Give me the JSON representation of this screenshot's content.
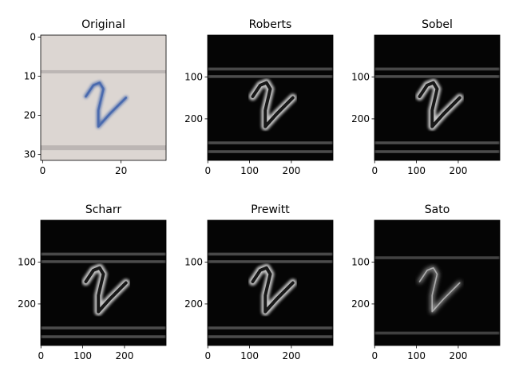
{
  "chart_data": [
    {
      "type": "image",
      "title": "Original",
      "image_kind": "photo",
      "xlim": [
        -0.5,
        31.5
      ],
      "ylim": [
        31.5,
        -0.5
      ],
      "xticks": [
        0,
        20
      ],
      "yticks": [
        0,
        10,
        20,
        30
      ],
      "colors": {
        "background": "#dcd6d2",
        "line": "#b8b2b0",
        "ink": "#4a6aae"
      }
    },
    {
      "type": "image",
      "title": "Roberts",
      "image_kind": "edge",
      "xlim": [
        -0.5,
        299.5
      ],
      "ylim": [
        299.5,
        -0.5
      ],
      "xticks": [
        0,
        100,
        200
      ],
      "yticks": [
        100,
        200
      ],
      "colors": {
        "background": "#050505",
        "edge": "#d8d8d8"
      }
    },
    {
      "type": "image",
      "title": "Sobel",
      "image_kind": "edge",
      "xlim": [
        -0.5,
        299.5
      ],
      "ylim": [
        299.5,
        -0.5
      ],
      "xticks": [
        0,
        100,
        200
      ],
      "yticks": [
        100,
        200
      ],
      "colors": {
        "background": "#050505",
        "edge": "#d8d8d8"
      }
    },
    {
      "type": "image",
      "title": "Scharr",
      "image_kind": "edge",
      "xlim": [
        -0.5,
        299.5
      ],
      "ylim": [
        299.5,
        -0.5
      ],
      "xticks": [
        0,
        100,
        200
      ],
      "yticks": [
        100,
        200
      ],
      "colors": {
        "background": "#050505",
        "edge": "#d8d8d8"
      }
    },
    {
      "type": "image",
      "title": "Prewitt",
      "image_kind": "edge",
      "xlim": [
        -0.5,
        299.5
      ],
      "ylim": [
        299.5,
        -0.5
      ],
      "xticks": [
        0,
        100,
        200
      ],
      "yticks": [
        100,
        200
      ],
      "colors": {
        "background": "#050505",
        "edge": "#d8d8d8"
      }
    },
    {
      "type": "image",
      "title": "Sato",
      "image_kind": "ridge",
      "xlim": [
        -0.5,
        299.5
      ],
      "ylim": [
        299.5,
        -0.5
      ],
      "xticks": [
        0,
        100,
        200
      ],
      "yticks": [
        100,
        200
      ],
      "colors": {
        "background": "#050505",
        "edge": "#cfcfcf"
      }
    }
  ]
}
